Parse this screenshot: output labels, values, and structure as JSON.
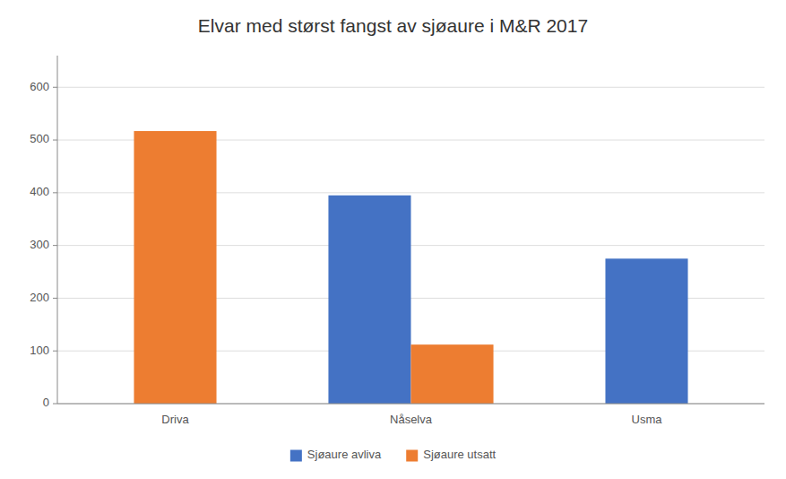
{
  "chart_data": {
    "type": "bar",
    "title": "Elvar med størst fangst av sjøaure i M&R 2017",
    "categories": [
      "Driva",
      "Nåselva",
      "Usma"
    ],
    "series": [
      {
        "name": "Sjøaure avliva",
        "color": "#4472C4",
        "values": [
          null,
          395,
          275
        ]
      },
      {
        "name": "Sjøaure utsatt",
        "color": "#ED7D31",
        "values": [
          517,
          112,
          null
        ]
      }
    ],
    "ylim": [
      0,
      660
    ],
    "yticks": [
      0,
      100,
      200,
      300,
      400,
      500,
      600
    ],
    "grid": true,
    "legend": "bottom"
  }
}
